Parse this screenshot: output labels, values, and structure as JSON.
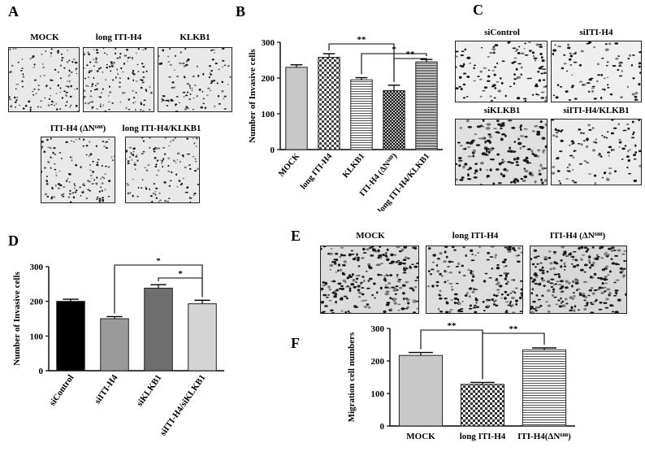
{
  "panels": {
    "A": {
      "letter": "A",
      "images": [
        {
          "label": "MOCK"
        },
        {
          "label": "long ITI-H4"
        },
        {
          "label": "KLKB1"
        },
        {
          "label": "ITI-H4 (ΔN⁶⁸⁸)"
        },
        {
          "label": "long ITI-H4/KLKB1"
        }
      ]
    },
    "C": {
      "letter": "C",
      "images": [
        {
          "label": "siControl"
        },
        {
          "label": "siITI-H4"
        },
        {
          "label": "siKLKB1"
        },
        {
          "label": "siITI-H4/KLKB1"
        }
      ]
    },
    "E": {
      "letter": "E",
      "images": [
        {
          "label": "MOCK"
        },
        {
          "label": "long ITI-H4"
        },
        {
          "label": "ITI-H4 (ΔN⁶⁸⁸)"
        }
      ]
    },
    "B": {
      "letter": "B"
    },
    "D": {
      "letter": "D"
    },
    "F": {
      "letter": "F"
    }
  },
  "chart_data": [
    {
      "panel": "B",
      "type": "bar",
      "categories": [
        "MOCK",
        "long ITI-H4",
        "KLKB1",
        "ITI-H4 (ΔN⁶⁸⁸)",
        "long ITI-H4/KLKB1"
      ],
      "values": [
        230,
        258,
        195,
        165,
        245
      ],
      "errors": [
        7,
        10,
        6,
        15,
        7
      ],
      "patterns": [
        "solid-lightgray",
        "checker",
        "hstripe",
        "dark-checker",
        "dense-hstripe"
      ],
      "ylabel": "Number of Invasive cells",
      "ylim": [
        0,
        300
      ],
      "yticks": [
        0,
        100,
        200,
        300
      ],
      "significance": [
        {
          "from": 1,
          "to": 3,
          "label": "**"
        },
        {
          "from": 2,
          "to": 4,
          "label": "*"
        },
        {
          "from": 3,
          "to": 4,
          "label": "**"
        }
      ]
    },
    {
      "panel": "D",
      "type": "bar",
      "categories": [
        "siControl",
        "siITI-H4",
        "siKLKB1",
        "siITI-H4/siKLKB1"
      ],
      "values": [
        200,
        150,
        238,
        193
      ],
      "errors": [
        6,
        6,
        10,
        10
      ],
      "colors": [
        "#000000",
        "#9a9a9a",
        "#6e6e6e",
        "#d4d4d4"
      ],
      "ylabel": "Number of Invasive cells",
      "ylim": [
        0,
        300
      ],
      "yticks": [
        0,
        100,
        200,
        300
      ],
      "significance": [
        {
          "from": 1,
          "to": 3,
          "label": "*"
        },
        {
          "from": 2,
          "to": 3,
          "label": "*"
        }
      ]
    },
    {
      "panel": "F",
      "type": "bar",
      "categories": [
        "MOCK",
        "long ITI-H4",
        "ITI-H4(ΔN⁶⁸⁸)"
      ],
      "values": [
        217,
        128,
        234
      ],
      "errors": [
        9,
        6,
        6
      ],
      "patterns": [
        "solid-lightgray",
        "checker",
        "hstripe"
      ],
      "ylabel": "Migration cell numbers",
      "ylim": [
        0,
        300
      ],
      "yticks": [
        0,
        100,
        200,
        300
      ],
      "significance": [
        {
          "from": 0,
          "to": 1,
          "label": "**"
        },
        {
          "from": 1,
          "to": 2,
          "label": "**"
        }
      ]
    }
  ]
}
